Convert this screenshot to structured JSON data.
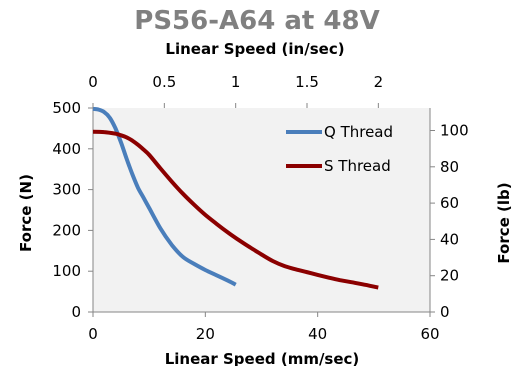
{
  "chart_data": {
    "type": "line",
    "title": "PS56-A64 at 48V",
    "x_bottom": {
      "label": "Linear Speed (mm/sec)",
      "range": [
        0,
        60
      ],
      "ticks": [
        0,
        20,
        40,
        60
      ],
      "tick_labels": [
        "0",
        "20",
        "40",
        "60"
      ]
    },
    "x_top": {
      "label": "Linear Speed (in/sec)",
      "range": [
        0,
        2.362
      ],
      "ticks": [
        0,
        0.5,
        1,
        1.5,
        2
      ],
      "tick_labels": [
        "0",
        "0.5",
        "1",
        "1.5",
        "2"
      ]
    },
    "y_left": {
      "label": "Force (N)",
      "range": [
        0,
        500
      ],
      "ticks": [
        0,
        100,
        200,
        300,
        400,
        500
      ],
      "tick_labels": [
        "0",
        "100",
        "200",
        "300",
        "400",
        "500"
      ]
    },
    "y_right": {
      "label": "Force (lb)",
      "range": [
        0,
        112.4
      ],
      "ticks": [
        0,
        20,
        40,
        60,
        80,
        100
      ],
      "tick_labels": [
        "0",
        "20",
        "40",
        "60",
        "80",
        "100"
      ]
    },
    "grid": false,
    "plot_background": "#f2f2f2",
    "legend_position": "top-right",
    "series": [
      {
        "name": "Q Thread",
        "color": "#4a7ebb",
        "x": [
          0,
          1,
          2,
          3,
          4,
          5,
          6,
          7,
          8,
          9,
          10,
          12,
          14,
          16,
          18,
          20,
          22,
          24,
          25.4
        ],
        "y": [
          498,
          496,
          490,
          476,
          450,
          415,
          375,
          338,
          305,
          280,
          255,
          205,
          165,
          135,
          118,
          103,
          90,
          77,
          67
        ]
      },
      {
        "name": "S Thread",
        "color": "#8b0000",
        "x": [
          0,
          2,
          4,
          5,
          6,
          7,
          8,
          9,
          10,
          12,
          14,
          16,
          18,
          20,
          22,
          24,
          26,
          28,
          30,
          32,
          34,
          36,
          38,
          40,
          42,
          44,
          46,
          48,
          50.8
        ],
        "y": [
          442,
          441,
          437,
          433,
          428,
          420,
          410,
          398,
          385,
          352,
          320,
          290,
          263,
          238,
          216,
          195,
          176,
          158,
          141,
          125,
          113,
          105,
          98,
          91,
          84,
          78,
          73,
          68,
          60
        ]
      }
    ]
  }
}
